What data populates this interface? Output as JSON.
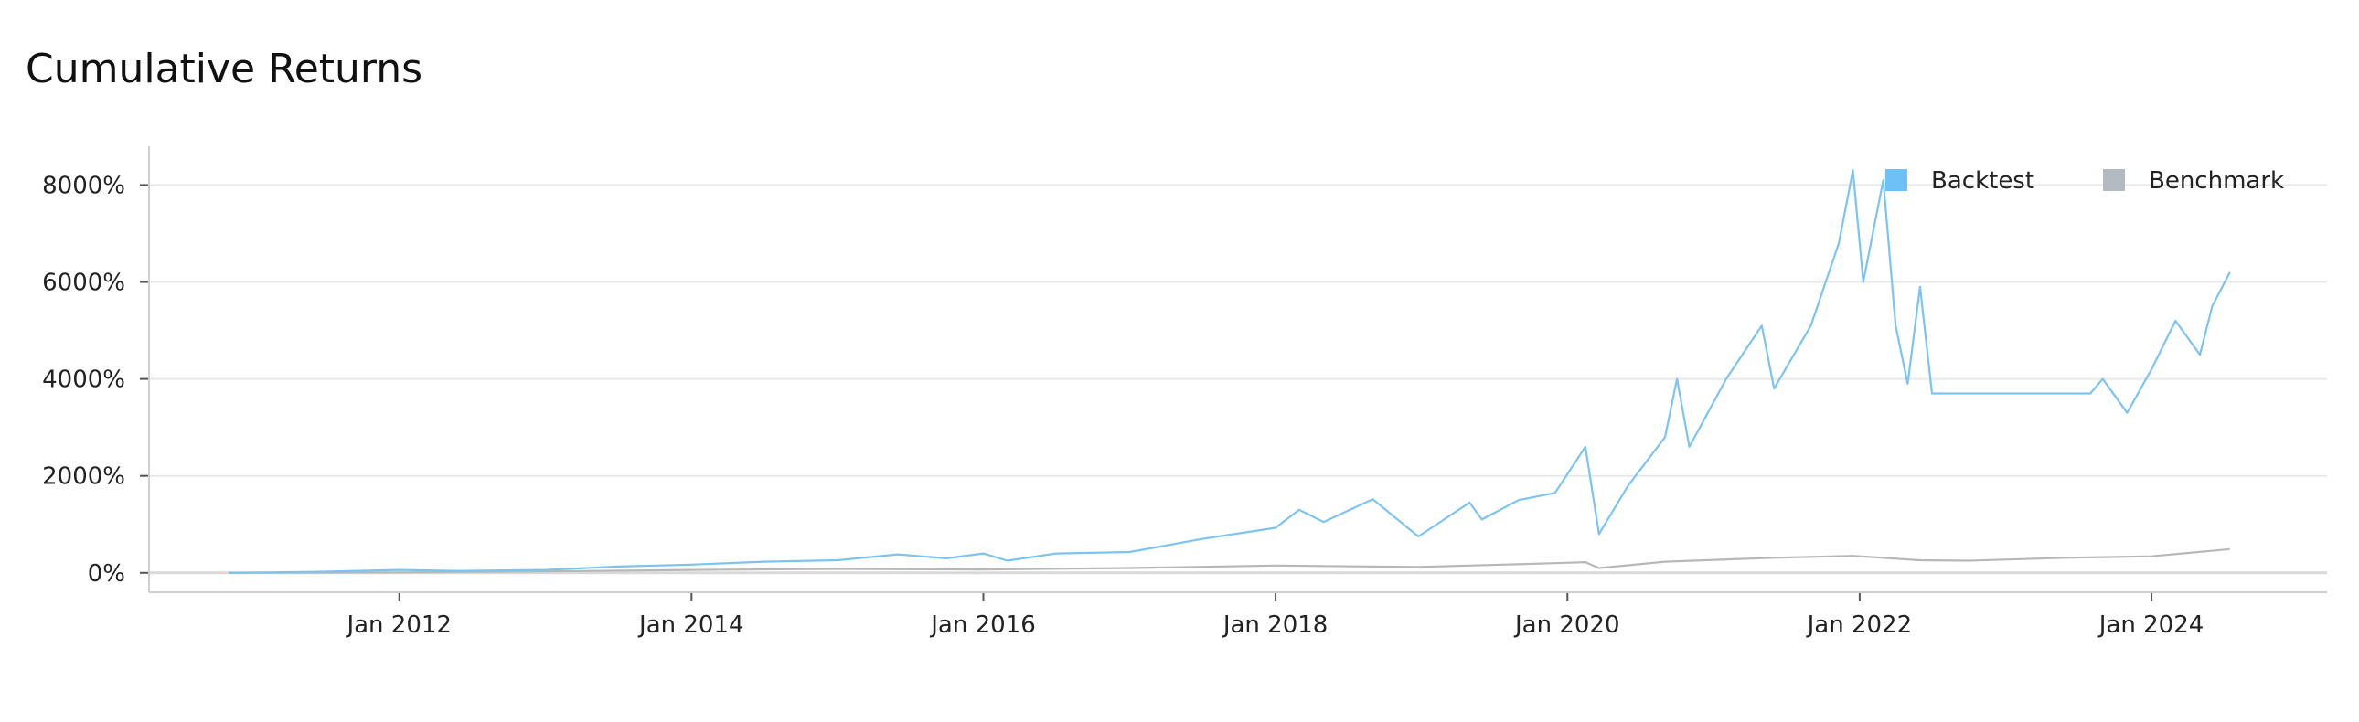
{
  "chart_data": {
    "type": "line",
    "title": "Cumulative Returns",
    "xlabel": "",
    "ylabel": "",
    "x_tick_labels": [
      "Jan 2012",
      "Jan 2014",
      "Jan 2016",
      "Jan 2018",
      "Jan 2020",
      "Jan 2022",
      "Jan 2024"
    ],
    "y_tick_labels": [
      "0%",
      "2000%",
      "4000%",
      "6000%",
      "8000%"
    ],
    "ylim": [
      -400,
      8800
    ],
    "xlim": [
      "2010-04-15",
      "2025-03-15"
    ],
    "grid": "horizontal",
    "legend_position": "top-right",
    "series": [
      {
        "name": "Backtest",
        "color": "#7cc4f0",
        "legend_color": "#6ec1f7",
        "points": [
          [
            "2010-11-01",
            0
          ],
          [
            "2011-06-01",
            20
          ],
          [
            "2012-01-01",
            60
          ],
          [
            "2012-06-01",
            40
          ],
          [
            "2013-01-01",
            60
          ],
          [
            "2013-07-01",
            130
          ],
          [
            "2014-01-01",
            170
          ],
          [
            "2014-07-01",
            230
          ],
          [
            "2015-01-01",
            260
          ],
          [
            "2015-06-01",
            380
          ],
          [
            "2015-10-01",
            300
          ],
          [
            "2016-01-01",
            400
          ],
          [
            "2016-03-01",
            250
          ],
          [
            "2016-07-01",
            400
          ],
          [
            "2017-01-01",
            430
          ],
          [
            "2017-07-01",
            700
          ],
          [
            "2018-01-01",
            930
          ],
          [
            "2018-03-01",
            1300
          ],
          [
            "2018-05-01",
            1050
          ],
          [
            "2018-09-01",
            1520
          ],
          [
            "2018-12-24",
            750
          ],
          [
            "2019-05-01",
            1450
          ],
          [
            "2019-06-01",
            1100
          ],
          [
            "2019-09-01",
            1500
          ],
          [
            "2019-12-01",
            1650
          ],
          [
            "2020-02-15",
            2600
          ],
          [
            "2020-03-20",
            800
          ],
          [
            "2020-06-01",
            1800
          ],
          [
            "2020-09-01",
            2800
          ],
          [
            "2020-10-01",
            4000
          ],
          [
            "2020-11-01",
            2600
          ],
          [
            "2021-02-01",
            4000
          ],
          [
            "2021-05-01",
            5100
          ],
          [
            "2021-06-01",
            3800
          ],
          [
            "2021-09-01",
            5100
          ],
          [
            "2021-11-10",
            6800
          ],
          [
            "2021-12-15",
            8300
          ],
          [
            "2022-01-10",
            6000
          ],
          [
            "2022-03-01",
            8100
          ],
          [
            "2022-04-01",
            5100
          ],
          [
            "2022-05-01",
            3900
          ],
          [
            "2022-06-01",
            5900
          ],
          [
            "2022-07-01",
            3700
          ],
          [
            "2023-08-01",
            3700
          ],
          [
            "2023-09-01",
            4000
          ],
          [
            "2023-11-01",
            3300
          ],
          [
            "2024-01-01",
            4200
          ],
          [
            "2024-03-01",
            5200
          ],
          [
            "2024-05-01",
            4500
          ],
          [
            "2024-06-01",
            5500
          ],
          [
            "2024-07-15",
            6200
          ]
        ]
      },
      {
        "name": "Benchmark",
        "color": "#b8b8b8",
        "legend_color": "#b3bbc2",
        "points": [
          [
            "2010-11-01",
            0
          ],
          [
            "2012-01-01",
            10
          ],
          [
            "2013-01-01",
            30
          ],
          [
            "2014-01-01",
            60
          ],
          [
            "2015-01-01",
            80
          ],
          [
            "2016-01-01",
            70
          ],
          [
            "2017-01-01",
            100
          ],
          [
            "2018-01-01",
            150
          ],
          [
            "2018-12-24",
            120
          ],
          [
            "2019-12-01",
            200
          ],
          [
            "2020-02-15",
            220
          ],
          [
            "2020-03-20",
            100
          ],
          [
            "2020-09-01",
            230
          ],
          [
            "2021-06-01",
            310
          ],
          [
            "2021-12-15",
            350
          ],
          [
            "2022-06-01",
            260
          ],
          [
            "2022-10-01",
            250
          ],
          [
            "2023-06-01",
            310
          ],
          [
            "2024-01-01",
            340
          ],
          [
            "2024-07-15",
            490
          ]
        ]
      }
    ]
  }
}
